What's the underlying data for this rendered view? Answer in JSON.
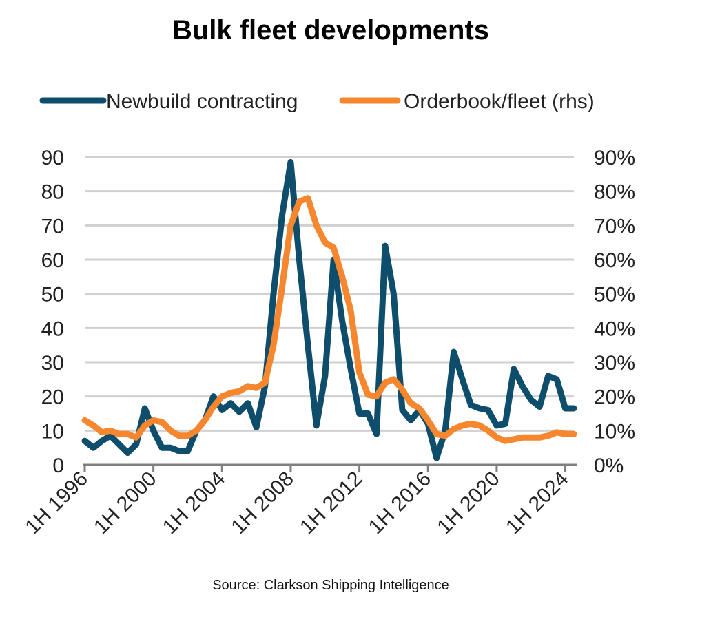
{
  "chart_data": {
    "type": "line",
    "title": "Bulk fleet developments",
    "source": "Source: Clarkson Shipping Intelligence",
    "x": [
      "1H 1996",
      "2H 1996",
      "1H 1997",
      "2H 1997",
      "1H 1998",
      "2H 1998",
      "1H 1999",
      "2H 1999",
      "1H 2000",
      "2H 2000",
      "1H 2001",
      "2H 2001",
      "1H 2002",
      "2H 2002",
      "1H 2003",
      "2H 2003",
      "1H 2004",
      "2H 2004",
      "1H 2005",
      "2H 2005",
      "1H 2006",
      "2H 2006",
      "1H 2007",
      "2H 2007",
      "1H 2008",
      "2H 2008",
      "1H 2009",
      "2H 2009",
      "1H 2010",
      "2H 2010",
      "1H 2011",
      "2H 2011",
      "1H 2012",
      "2H 2012",
      "1H 2013",
      "2H 2013",
      "1H 2014",
      "2H 2014",
      "1H 2015",
      "2H 2015",
      "1H 2016",
      "2H 2016",
      "1H 2017",
      "2H 2017",
      "1H 2018",
      "2H 2018",
      "1H 2019",
      "2H 2019",
      "1H 2020",
      "2H 2020",
      "1H 2021",
      "2H 2021",
      "1H 2022",
      "2H 2022",
      "1H 2023",
      "2H 2023",
      "1H 2024",
      "2H 2024"
    ],
    "x_tick_labels": [
      "1H 1996",
      "1H 2000",
      "1H 2004",
      "1H 2008",
      "1H 2012",
      "1H 2016",
      "1H 2020",
      "1H 2024"
    ],
    "x_tick_indices": [
      0,
      8,
      16,
      24,
      32,
      40,
      48,
      56
    ],
    "series": [
      {
        "name": "Newbuild contracting",
        "axis": "left",
        "color": "#0e4d6b",
        "values": [
          7,
          5,
          7,
          8.5,
          6,
          3.5,
          6,
          16.5,
          10,
          5,
          5,
          4,
          4,
          10,
          13,
          20,
          16,
          18,
          15.5,
          18,
          11,
          23,
          50,
          73,
          88.5,
          60,
          35,
          11.5,
          26,
          60,
          42,
          28,
          15,
          15,
          9,
          64,
          50,
          16,
          13,
          16,
          12,
          2,
          10,
          33,
          25,
          17.5,
          16.5,
          16,
          11.5,
          12,
          28,
          23,
          19,
          17,
          26,
          25,
          16.5,
          16.5
        ]
      },
      {
        "name": "Orderbook/fleet (rhs)",
        "axis": "right",
        "color": "#f7872e",
        "values": [
          13,
          11.5,
          9.5,
          10,
          9,
          9,
          8,
          11.5,
          13,
          12.5,
          10,
          8.5,
          8.5,
          10,
          13,
          17,
          20,
          21,
          21.5,
          23,
          22.5,
          24,
          35,
          52,
          70,
          77,
          78,
          70,
          65,
          63.5,
          55,
          45,
          27,
          20.5,
          20,
          24,
          25,
          22,
          18,
          16.5,
          13,
          9,
          8.5,
          10.5,
          11.5,
          12,
          11.5,
          10,
          8,
          7,
          7.5,
          8,
          8,
          8,
          8.5,
          9.5,
          9,
          9
        ]
      }
    ],
    "y_left": {
      "lim": [
        0,
        90
      ],
      "ticks": [
        "0",
        "10",
        "20",
        "30",
        "40",
        "50",
        "60",
        "70",
        "80",
        "90"
      ]
    },
    "y_right": {
      "lim": [
        0,
        0.9
      ],
      "ticks": [
        "0%",
        "10%",
        "20%",
        "30%",
        "40%",
        "50%",
        "60%",
        "70%",
        "80%",
        "90%"
      ]
    },
    "grid": "horizontal",
    "legend_position": "top"
  }
}
